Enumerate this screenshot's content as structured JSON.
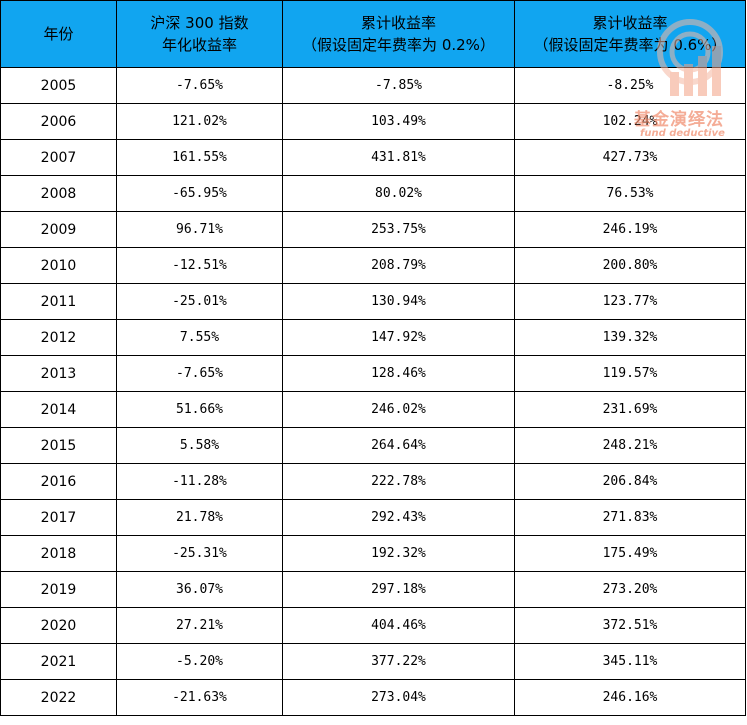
{
  "table": {
    "headers": [
      {
        "lines": [
          "年份"
        ]
      },
      {
        "lines": [
          "沪深 300 指数",
          "年化收益率"
        ]
      },
      {
        "lines": [
          "累计收益率",
          "（假设固定年费率为 0.2%）"
        ]
      },
      {
        "lines": [
          "累计收益率",
          "（假设固定年费率为 0.6%）"
        ]
      }
    ],
    "rows": [
      [
        "2005",
        "-7.65%",
        "-7.85%",
        "-8.25%"
      ],
      [
        "2006",
        "121.02%",
        "103.49%",
        "102.24%"
      ],
      [
        "2007",
        "161.55%",
        "431.81%",
        "427.73%"
      ],
      [
        "2008",
        "-65.95%",
        "80.02%",
        "76.53%"
      ],
      [
        "2009",
        "96.71%",
        "253.75%",
        "246.19%"
      ],
      [
        "2010",
        "-12.51%",
        "208.79%",
        "200.80%"
      ],
      [
        "2011",
        "-25.01%",
        "130.94%",
        "123.77%"
      ],
      [
        "2012",
        "7.55%",
        "147.92%",
        "139.32%"
      ],
      [
        "2013",
        "-7.65%",
        "128.46%",
        "119.57%"
      ],
      [
        "2014",
        "51.66%",
        "246.02%",
        "231.69%"
      ],
      [
        "2015",
        "5.58%",
        "264.64%",
        "248.21%"
      ],
      [
        "2016",
        "-11.28%",
        "222.78%",
        "206.84%"
      ],
      [
        "2017",
        "21.78%",
        "292.43%",
        "271.83%"
      ],
      [
        "2018",
        "-25.31%",
        "192.32%",
        "175.49%"
      ],
      [
        "2019",
        "36.07%",
        "297.18%",
        "273.20%"
      ],
      [
        "2020",
        "27.21%",
        "404.46%",
        "372.51%"
      ],
      [
        "2021",
        "-5.20%",
        "377.22%",
        "345.11%"
      ],
      [
        "2022",
        "-21.63%",
        "273.04%",
        "246.16%"
      ]
    ]
  },
  "watermark": {
    "title": "基金演绎法",
    "subtitle": "fund deductive"
  },
  "colors": {
    "header_bg": "#11a5f0",
    "border": "#000000",
    "watermark": "#f08a6a"
  }
}
